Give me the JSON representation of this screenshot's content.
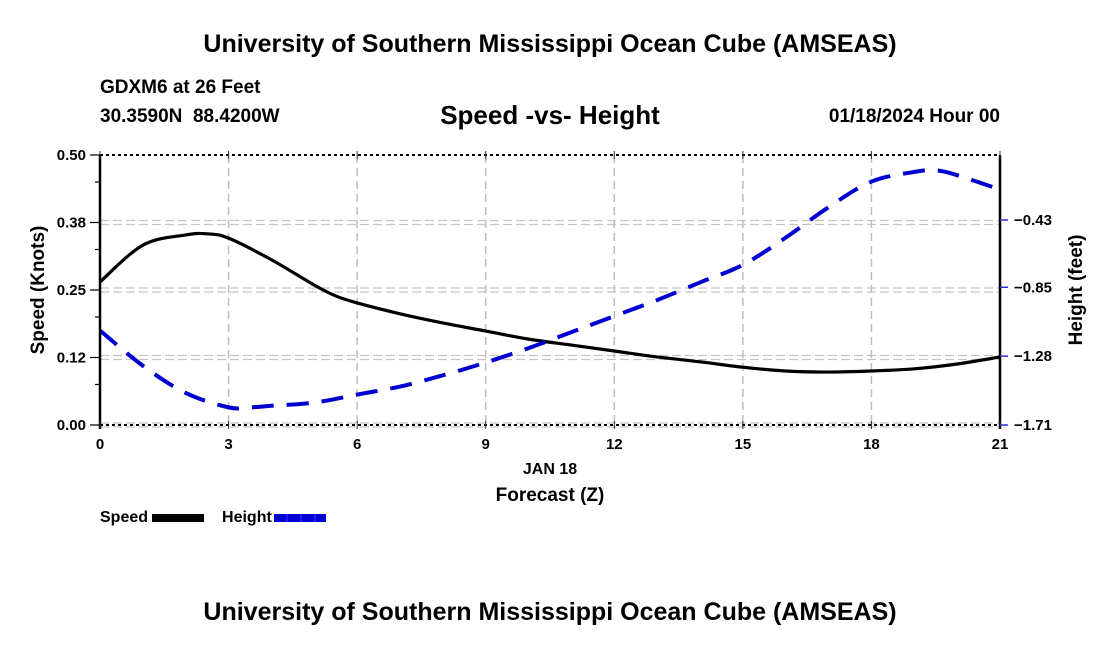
{
  "header": {
    "main_title": "University of Southern Mississippi Ocean Cube (AMSEAS)",
    "station": "GDXM6 at 26 Feet",
    "coordinates": "30.3590N  88.4200W",
    "subtitle": "Speed -vs- Height",
    "datetime": "01/18/2024 Hour 00"
  },
  "footer": {
    "title": "University of Southern Mississippi Ocean Cube (AMSEAS)"
  },
  "legend": [
    {
      "label": "Speed",
      "color": "#000000",
      "style": "solid"
    },
    {
      "label": "Height",
      "color": "#0000d0",
      "style": "dashed"
    }
  ],
  "chart_data": {
    "type": "line",
    "title": "Speed -vs- Height",
    "xlabel": "Forecast (Z)",
    "xlabel_date": "JAN 18",
    "ylabel": "Speed (Knots)",
    "ylabel_right": "Height (feet)",
    "xlim": [
      0,
      21
    ],
    "ylim": [
      0,
      0.5
    ],
    "ylim_right": [
      -1.71,
      -0.0
    ],
    "x_ticks": [
      0,
      3,
      6,
      9,
      12,
      15,
      18,
      21
    ],
    "x_tick_labels": [
      "0",
      "3",
      "6",
      "9",
      "12",
      "15",
      "18",
      "21"
    ],
    "y_ticks": [
      0.0,
      0.125,
      0.25,
      0.375,
      0.5
    ],
    "y_tick_labels": [
      "0.00",
      "0.12",
      "0.25",
      "0.38",
      "0.50"
    ],
    "y_right_ticks": [
      -1.71,
      -1.28,
      -0.85,
      -0.43
    ],
    "y_right_tick_labels": [
      "−1.71",
      "−1.28",
      "−0.85",
      "−0.43"
    ],
    "grid": true,
    "legend_position": "bottom-left",
    "series": [
      {
        "name": "Speed",
        "axis": "left",
        "color": "#000000",
        "style": "solid",
        "x": [
          0,
          1,
          2,
          2.5,
          3,
          4,
          5,
          5.5,
          6,
          7,
          8,
          9,
          10,
          11,
          12,
          13,
          14,
          15,
          16,
          17,
          18,
          19,
          20,
          21
        ],
        "values": [
          0.265,
          0.333,
          0.352,
          0.354,
          0.346,
          0.306,
          0.259,
          0.239,
          0.226,
          0.206,
          0.189,
          0.174,
          0.159,
          0.148,
          0.137,
          0.126,
          0.117,
          0.107,
          0.1,
          0.098,
          0.1,
          0.104,
          0.113,
          0.126
        ]
      },
      {
        "name": "Height",
        "axis": "right",
        "color": "#0000d0",
        "style": "dashed",
        "x": [
          0,
          1,
          2,
          3,
          3.5,
          4,
          5,
          6,
          7,
          8,
          9,
          10,
          11,
          12,
          13,
          14,
          15,
          16,
          17,
          18,
          19,
          19.5,
          20,
          21
        ],
        "values": [
          -1.12,
          -1.34,
          -1.51,
          -1.6,
          -1.6,
          -1.59,
          -1.57,
          -1.52,
          -1.47,
          -1.4,
          -1.32,
          -1.23,
          -1.13,
          -1.03,
          -0.93,
          -0.82,
          -0.71,
          -0.54,
          -0.35,
          -0.19,
          -0.13,
          -0.12,
          -0.15,
          -0.24
        ]
      }
    ]
  }
}
